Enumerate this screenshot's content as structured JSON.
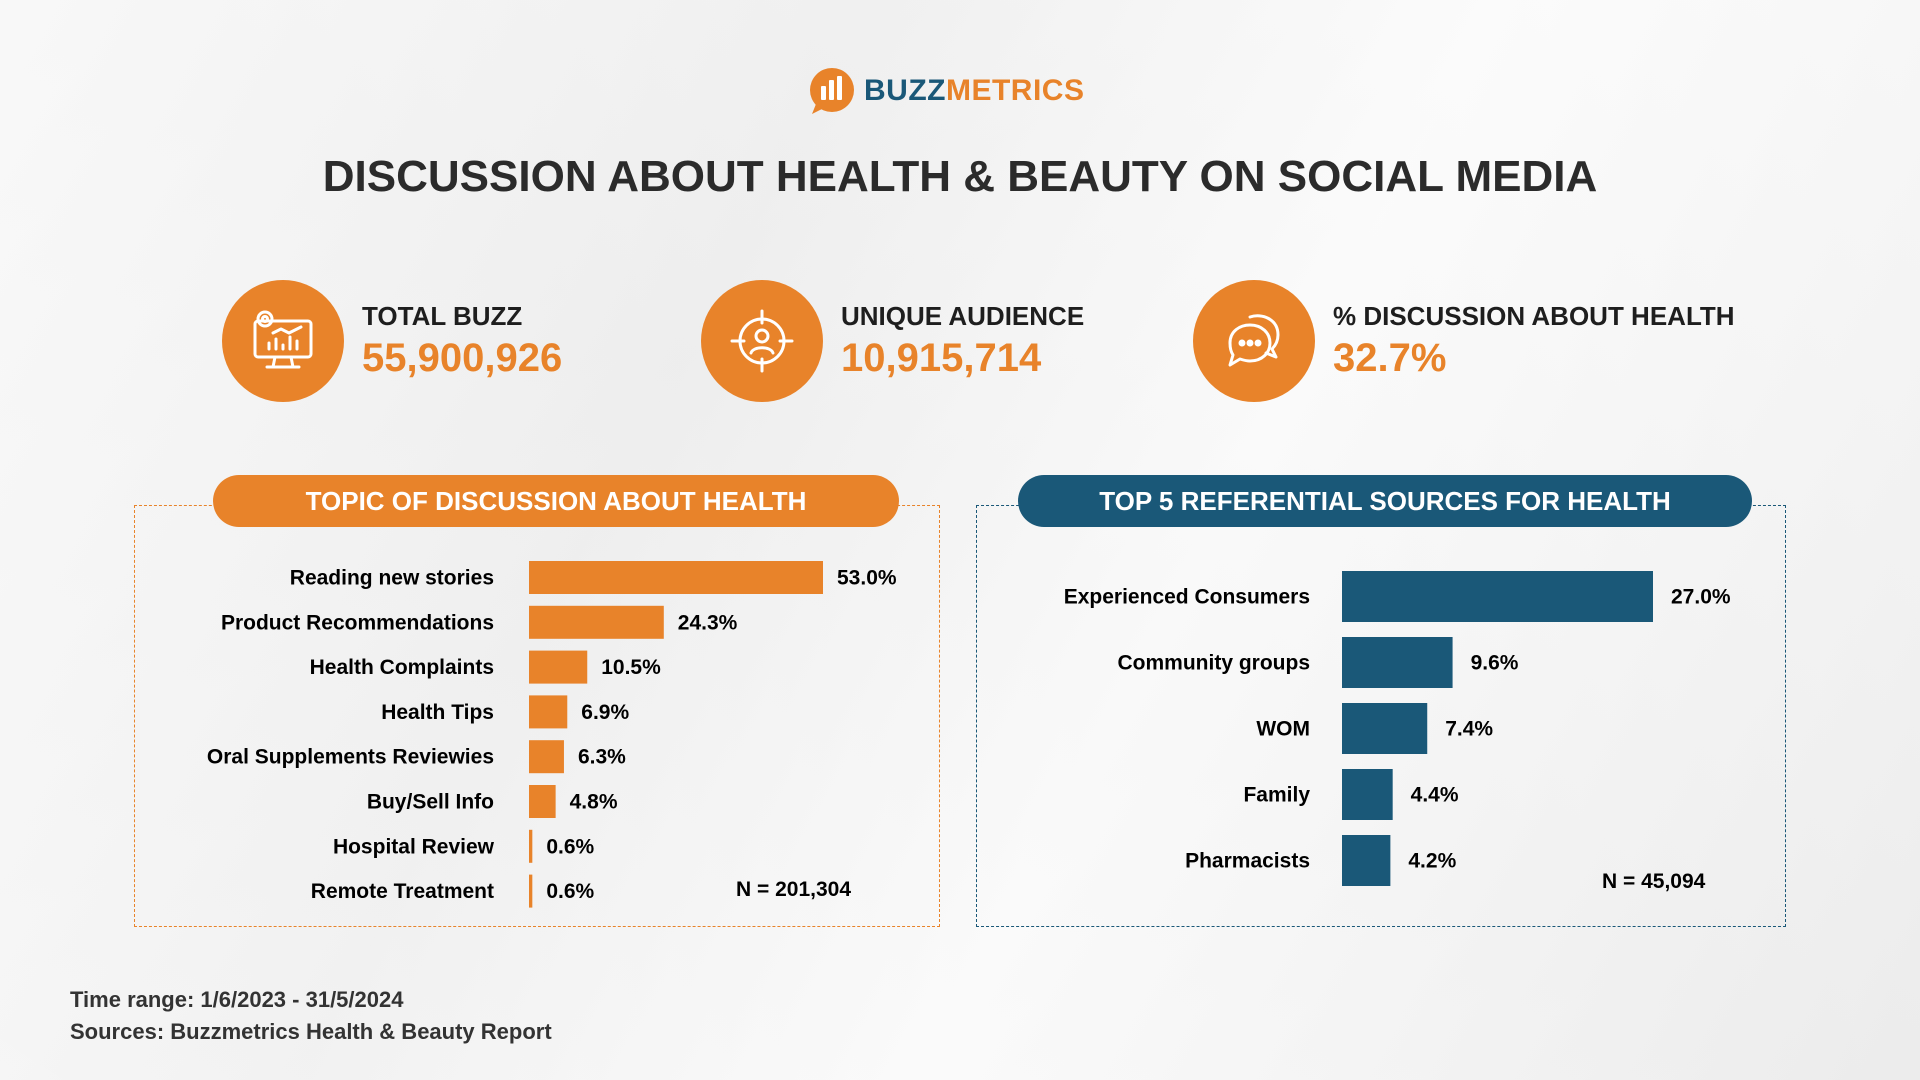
{
  "brand": {
    "name_part1": "BUZZ",
    "name_part2": "METRICS",
    "colors": {
      "orange": "#e8832a",
      "blue": "#1a5878"
    }
  },
  "title": "DISCUSSION ABOUT HEALTH & BEAUTY ON SOCIAL MEDIA",
  "kpis": [
    {
      "icon": "monitor-analytics-icon",
      "label": "TOTAL BUZZ",
      "value": "55,900,926"
    },
    {
      "icon": "target-user-icon",
      "label": "UNIQUE AUDIENCE",
      "value": "10,915,714"
    },
    {
      "icon": "chat-bubbles-icon",
      "label": "% DISCUSSION ABOUT HEALTH",
      "value": "32.7%"
    }
  ],
  "chart_data": [
    {
      "type": "bar",
      "orientation": "horizontal",
      "title": "TOPIC OF DISCUSSION ABOUT HEALTH",
      "categories": [
        "Reading new stories",
        "Product Recommendations",
        "Health Complaints",
        "Health Tips",
        "Oral Supplements Reviewies",
        "Buy/Sell Info",
        "Hospital Review",
        "Remote Treatment"
      ],
      "values": [
        53.0,
        24.3,
        10.5,
        6.9,
        6.3,
        4.8,
        0.6,
        0.6
      ],
      "value_labels": [
        "53.0%",
        "24.3%",
        "10.5%",
        "6.9%",
        "6.3%",
        "4.8%",
        "0.6%",
        "0.6%"
      ],
      "note": "N = 201,304",
      "color": "#e8832a",
      "xlim": [
        0,
        53
      ]
    },
    {
      "type": "bar",
      "orientation": "horizontal",
      "title": "TOP 5 REFERENTIAL SOURCES FOR HEALTH",
      "categories": [
        "Experienced Consumers",
        "Community groups",
        "WOM",
        "Family",
        "Pharmacists"
      ],
      "values": [
        27.0,
        9.6,
        7.4,
        4.4,
        4.2
      ],
      "value_labels": [
        "27.0%",
        "9.6%",
        "7.4%",
        "4.4%",
        "4.2%"
      ],
      "note": "N = 45,094",
      "color": "#1a5878",
      "xlim": [
        0,
        27
      ]
    }
  ],
  "footer": {
    "time_range": "Time range: 1/6/2023 - 31/5/2024",
    "sources": "Sources: Buzzmetrics Health & Beauty Report"
  }
}
